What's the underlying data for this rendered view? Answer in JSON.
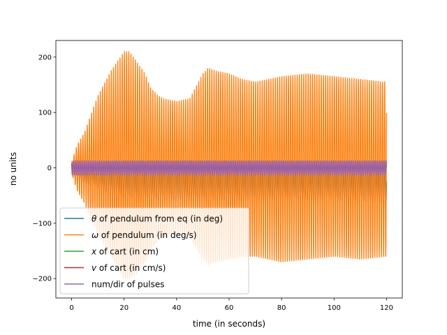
{
  "chart_data": {
    "type": "line",
    "xlabel": "time (in seconds)",
    "ylabel": "no units",
    "xlim": [
      -6,
      126
    ],
    "ylim": [
      -235,
      230
    ],
    "xticks": [
      0,
      20,
      40,
      60,
      80,
      100,
      120
    ],
    "yticks": [
      -200,
      -100,
      0,
      100,
      200
    ],
    "xtick_labels": [
      "0",
      "20",
      "40",
      "60",
      "80",
      "100",
      "120"
    ],
    "ytick_labels": [
      "−200",
      "−100",
      "0",
      "100",
      "200"
    ],
    "grid": false,
    "legend_position": "lower-left",
    "oscillation_frequency_hz": 1.2,
    "series": [
      {
        "name_prefix": "θ",
        "name": " of pendulum from eq (in deg)",
        "color": "#1f77b4",
        "envelope_t": [
          0,
          5,
          10,
          20,
          40,
          60,
          80,
          100,
          118,
          120
        ],
        "envelope_upper": [
          5,
          8,
          10,
          12,
          12,
          12,
          12,
          12,
          12,
          12
        ],
        "envelope_lower": [
          -5,
          -30,
          -40,
          -55,
          -60,
          -60,
          -60,
          -60,
          -62,
          -62
        ]
      },
      {
        "name_prefix": "ω",
        "name": " of pendulum (in deg/s)",
        "color": "#ff7f0e",
        "envelope_t": [
          0,
          2,
          5,
          10,
          15,
          20,
          22,
          25,
          28,
          30,
          33,
          35,
          40,
          45,
          50,
          52,
          55,
          60,
          65,
          70,
          80,
          90,
          100,
          110,
          119.5
        ],
        "envelope_upper": [
          10,
          40,
          65,
          130,
          175,
          210,
          210,
          190,
          170,
          145,
          130,
          125,
          120,
          125,
          170,
          180,
          175,
          170,
          160,
          155,
          165,
          170,
          165,
          160,
          155
        ],
        "envelope_lower": [
          -10,
          -40,
          -65,
          -120,
          -160,
          -200,
          -200,
          -190,
          -170,
          -150,
          -130,
          -125,
          -120,
          -125,
          -165,
          -175,
          -170,
          -165,
          -160,
          -160,
          -170,
          -165,
          -160,
          -165,
          -160
        ]
      },
      {
        "name_prefix": "x",
        "name": " of cart (in cm)",
        "color": "#2ca02c",
        "envelope_t": [
          0,
          120
        ],
        "envelope_upper": [
          3,
          3
        ],
        "envelope_lower": [
          -3,
          -3
        ]
      },
      {
        "name_prefix": "v",
        "name": " of cart  (in cm/s)",
        "color": "#d62728",
        "envelope_t": [
          0,
          120
        ],
        "envelope_upper": [
          8,
          8
        ],
        "envelope_lower": [
          -8,
          -8
        ]
      },
      {
        "name_prefix": "",
        "name": "num/dir of pulses",
        "color": "#9467bd",
        "envelope_t": [
          0,
          120
        ],
        "envelope_upper": [
          13,
          13
        ],
        "envelope_lower": [
          -13,
          -13
        ]
      }
    ]
  }
}
